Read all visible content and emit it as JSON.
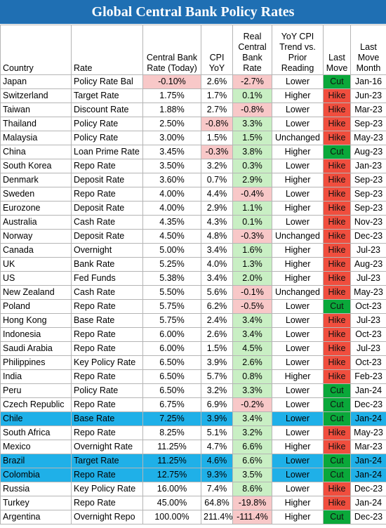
{
  "title": "Global Central Bank Policy Rates",
  "headers": [
    "Country",
    "Rate",
    "Central Bank Rate (Today)",
    "CPI YoY",
    "Real Central Bank Rate",
    "YoY CPI Trend vs. Prior Reading",
    "Last Move",
    "Last Move Month"
  ],
  "colors": {
    "cut": "#0aa83a",
    "hike": "#f04e3e",
    "positive_real": "#c9efc4",
    "negative_real": "#f8c8c8",
    "highlight_row": "#1fb0e8",
    "title_bg": "#1f6fb3"
  },
  "rows": [
    {
      "country": "Japan",
      "rate": "Policy Rate Bal",
      "cb": "-0.10%",
      "cpi": "2.6%",
      "real": "-2.7%",
      "trend": "Lower",
      "move": "Cut",
      "month": "Jan-16",
      "cb_neg": true,
      "cpi_neg": false,
      "hl": false
    },
    {
      "country": "Switzerland",
      "rate": "Target Rate",
      "cb": "1.75%",
      "cpi": "1.7%",
      "real": "0.1%",
      "trend": "Higher",
      "move": "Hike",
      "month": "Jun-23",
      "cb_neg": false,
      "cpi_neg": false,
      "hl": false
    },
    {
      "country": "Taiwan",
      "rate": "Discount Rate",
      "cb": "1.88%",
      "cpi": "2.7%",
      "real": "-0.8%",
      "trend": "Lower",
      "move": "Hike",
      "month": "Mar-23",
      "cb_neg": false,
      "cpi_neg": false,
      "hl": false
    },
    {
      "country": "Thailand",
      "rate": "Policy Rate",
      "cb": "2.50%",
      "cpi": "-0.8%",
      "real": "3.3%",
      "trend": "Lower",
      "move": "Hike",
      "month": "Sep-23",
      "cb_neg": false,
      "cpi_neg": true,
      "hl": false
    },
    {
      "country": "Malaysia",
      "rate": "Policy Rate",
      "cb": "3.00%",
      "cpi": "1.5%",
      "real": "1.5%",
      "trend": "Unchanged",
      "move": "Hike",
      "month": "May-23",
      "cb_neg": false,
      "cpi_neg": false,
      "hl": false
    },
    {
      "country": "China",
      "rate": "Loan Prime Rate",
      "cb": "3.45%",
      "cpi": "-0.3%",
      "real": "3.8%",
      "trend": "Higher",
      "move": "Cut",
      "month": "Aug-23",
      "cb_neg": false,
      "cpi_neg": true,
      "hl": false
    },
    {
      "country": "South Korea",
      "rate": "Repo Rate",
      "cb": "3.50%",
      "cpi": "3.2%",
      "real": "0.3%",
      "trend": "Lower",
      "move": "Hike",
      "month": "Jan-23",
      "cb_neg": false,
      "cpi_neg": false,
      "hl": false
    },
    {
      "country": "Denmark",
      "rate": "Deposit Rate",
      "cb": "3.60%",
      "cpi": "0.7%",
      "real": "2.9%",
      "trend": "Higher",
      "move": "Hike",
      "month": "Sep-23",
      "cb_neg": false,
      "cpi_neg": false,
      "hl": false
    },
    {
      "country": "Sweden",
      "rate": "Repo Rate",
      "cb": "4.00%",
      "cpi": "4.4%",
      "real": "-0.4%",
      "trend": "Lower",
      "move": "Hike",
      "month": "Sep-23",
      "cb_neg": false,
      "cpi_neg": false,
      "hl": false
    },
    {
      "country": "Eurozone",
      "rate": "Deposit Rate",
      "cb": "4.00%",
      "cpi": "2.9%",
      "real": "1.1%",
      "trend": "Higher",
      "move": "Hike",
      "month": "Sep-23",
      "cb_neg": false,
      "cpi_neg": false,
      "hl": false
    },
    {
      "country": "Australia",
      "rate": "Cash Rate",
      "cb": "4.35%",
      "cpi": "4.3%",
      "real": "0.1%",
      "trend": "Lower",
      "move": "Hike",
      "month": "Nov-23",
      "cb_neg": false,
      "cpi_neg": false,
      "hl": false
    },
    {
      "country": "Norway",
      "rate": "Deposit Rate",
      "cb": "4.50%",
      "cpi": "4.8%",
      "real": "-0.3%",
      "trend": "Unchanged",
      "move": "Hike",
      "month": "Dec-23",
      "cb_neg": false,
      "cpi_neg": false,
      "hl": false
    },
    {
      "country": "Canada",
      "rate": "Overnight",
      "cb": "5.00%",
      "cpi": "3.4%",
      "real": "1.6%",
      "trend": "Higher",
      "move": "Hike",
      "month": "Jul-23",
      "cb_neg": false,
      "cpi_neg": false,
      "hl": false
    },
    {
      "country": "UK",
      "rate": "Bank Rate",
      "cb": "5.25%",
      "cpi": "4.0%",
      "real": "1.3%",
      "trend": "Higher",
      "move": "Hike",
      "month": "Aug-23",
      "cb_neg": false,
      "cpi_neg": false,
      "hl": false
    },
    {
      "country": "US",
      "rate": "Fed Funds",
      "cb": "5.38%",
      "cpi": "3.4%",
      "real": "2.0%",
      "trend": "Higher",
      "move": "Hike",
      "month": "Jul-23",
      "cb_neg": false,
      "cpi_neg": false,
      "hl": false
    },
    {
      "country": "New Zealand",
      "rate": "Cash Rate",
      "cb": "5.50%",
      "cpi": "5.6%",
      "real": "-0.1%",
      "trend": "Unchanged",
      "move": "Hike",
      "month": "May-23",
      "cb_neg": false,
      "cpi_neg": false,
      "hl": false
    },
    {
      "country": "Poland",
      "rate": "Repo Rate",
      "cb": "5.75%",
      "cpi": "6.2%",
      "real": "-0.5%",
      "trend": "Lower",
      "move": "Cut",
      "month": "Oct-23",
      "cb_neg": false,
      "cpi_neg": false,
      "hl": false
    },
    {
      "country": "Hong Kong",
      "rate": "Base Rate",
      "cb": "5.75%",
      "cpi": "2.4%",
      "real": "3.4%",
      "trend": "Lower",
      "move": "Hike",
      "month": "Jul-23",
      "cb_neg": false,
      "cpi_neg": false,
      "hl": false
    },
    {
      "country": "Indonesia",
      "rate": "Repo Rate",
      "cb": "6.00%",
      "cpi": "2.6%",
      "real": "3.4%",
      "trend": "Lower",
      "move": "Hike",
      "month": "Oct-23",
      "cb_neg": false,
      "cpi_neg": false,
      "hl": false
    },
    {
      "country": "Saudi Arabia",
      "rate": "Repo Rate",
      "cb": "6.00%",
      "cpi": "1.5%",
      "real": "4.5%",
      "trend": "Lower",
      "move": "Hike",
      "month": "Jul-23",
      "cb_neg": false,
      "cpi_neg": false,
      "hl": false
    },
    {
      "country": "Philippines",
      "rate": "Key Policy Rate",
      "cb": "6.50%",
      "cpi": "3.9%",
      "real": "2.6%",
      "trend": "Lower",
      "move": "Hike",
      "month": "Oct-23",
      "cb_neg": false,
      "cpi_neg": false,
      "hl": false
    },
    {
      "country": "India",
      "rate": "Repo Rate",
      "cb": "6.50%",
      "cpi": "5.7%",
      "real": "0.8%",
      "trend": "Higher",
      "move": "Hike",
      "month": "Feb-23",
      "cb_neg": false,
      "cpi_neg": false,
      "hl": false
    },
    {
      "country": "Peru",
      "rate": "Policy Rate",
      "cb": "6.50%",
      "cpi": "3.2%",
      "real": "3.3%",
      "trend": "Lower",
      "move": "Cut",
      "month": "Jan-24",
      "cb_neg": false,
      "cpi_neg": false,
      "hl": false
    },
    {
      "country": "Czech Republic",
      "rate": "Repo Rate",
      "cb": "6.75%",
      "cpi": "6.9%",
      "real": "-0.2%",
      "trend": "Lower",
      "move": "Cut",
      "month": "Dec-23",
      "cb_neg": false,
      "cpi_neg": false,
      "hl": false
    },
    {
      "country": "Chile",
      "rate": "Base Rate",
      "cb": "7.25%",
      "cpi": "3.9%",
      "real": "3.4%",
      "trend": "Lower",
      "move": "Cut",
      "month": "Jan-24",
      "cb_neg": false,
      "cpi_neg": false,
      "hl": true
    },
    {
      "country": "South Africa",
      "rate": "Repo Rate",
      "cb": "8.25%",
      "cpi": "5.1%",
      "real": "3.2%",
      "trend": "Lower",
      "move": "Hike",
      "month": "May-23",
      "cb_neg": false,
      "cpi_neg": false,
      "hl": false
    },
    {
      "country": "Mexico",
      "rate": "Overnight Rate",
      "cb": "11.25%",
      "cpi": "4.7%",
      "real": "6.6%",
      "trend": "Higher",
      "move": "Hike",
      "month": "Mar-23",
      "cb_neg": false,
      "cpi_neg": false,
      "hl": false
    },
    {
      "country": "Brazil",
      "rate": "Target Rate",
      "cb": "11.25%",
      "cpi": "4.6%",
      "real": "6.6%",
      "trend": "Lower",
      "move": "Cut",
      "month": "Jan-24",
      "cb_neg": false,
      "cpi_neg": false,
      "hl": true
    },
    {
      "country": "Colombia",
      "rate": "Repo Rate",
      "cb": "12.75%",
      "cpi": "9.3%",
      "real": "3.5%",
      "trend": "Lower",
      "move": "Cut",
      "month": "Jan-24",
      "cb_neg": false,
      "cpi_neg": false,
      "hl": true
    },
    {
      "country": "Russia",
      "rate": "Key Policy Rate",
      "cb": "16.00%",
      "cpi": "7.4%",
      "real": "8.6%",
      "trend": "Lower",
      "move": "Hike",
      "month": "Dec-23",
      "cb_neg": false,
      "cpi_neg": false,
      "hl": false
    },
    {
      "country": "Turkey",
      "rate": "Repo Rate",
      "cb": "45.00%",
      "cpi": "64.8%",
      "real": "-19.8%",
      "trend": "Higher",
      "move": "Hike",
      "month": "Jan-24",
      "cb_neg": false,
      "cpi_neg": false,
      "hl": false
    },
    {
      "country": "Argentina",
      "rate": "Overnight Repo",
      "cb": "100.00%",
      "cpi": "211.4%",
      "real": "-111.4%",
      "trend": "Higher",
      "move": "Cut",
      "month": "Dec-23",
      "cb_neg": false,
      "cpi_neg": false,
      "hl": false
    }
  ]
}
